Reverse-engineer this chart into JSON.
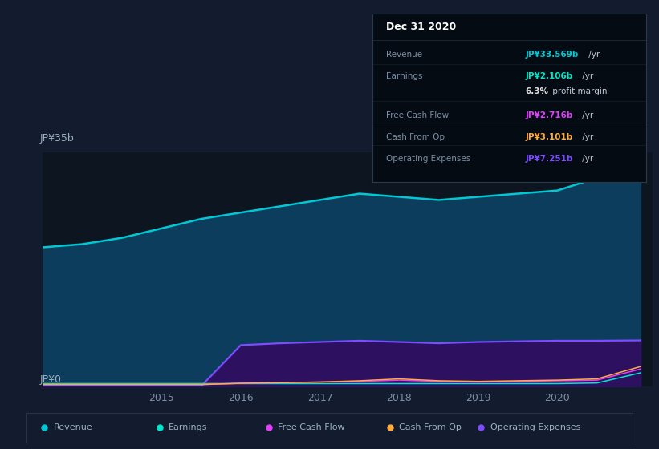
{
  "bg_color": "#131c2e",
  "plot_bg": "#0d1520",
  "title": "Dec 31 2020",
  "years": [
    2013.5,
    2014.0,
    2014.5,
    2015.0,
    2015.5,
    2016.0,
    2016.5,
    2017.0,
    2017.5,
    2018.0,
    2018.5,
    2019.0,
    2019.5,
    2020.0,
    2020.5,
    2021.05
  ],
  "revenue": [
    22.0,
    22.5,
    23.5,
    25.0,
    26.5,
    27.5,
    28.5,
    29.5,
    30.5,
    30.0,
    29.5,
    30.0,
    30.5,
    31.0,
    33.0,
    33.569
  ],
  "earnings": [
    0.4,
    0.4,
    0.4,
    0.4,
    0.4,
    0.4,
    0.4,
    0.4,
    0.4,
    0.4,
    0.4,
    0.4,
    0.4,
    0.4,
    0.5,
    2.106
  ],
  "free_cash_flow": [
    0.25,
    0.25,
    0.25,
    0.25,
    0.25,
    0.45,
    0.55,
    0.65,
    0.75,
    0.95,
    0.75,
    0.65,
    0.75,
    0.85,
    0.95,
    2.716
  ],
  "cash_from_op": [
    0.25,
    0.25,
    0.25,
    0.25,
    0.25,
    0.45,
    0.55,
    0.65,
    0.85,
    1.15,
    0.85,
    0.75,
    0.85,
    0.95,
    1.15,
    3.101
  ],
  "op_expenses": [
    0.0,
    0.0,
    0.0,
    0.0,
    0.0,
    6.5,
    6.8,
    7.0,
    7.2,
    7.0,
    6.8,
    7.0,
    7.1,
    7.2,
    7.2,
    7.251
  ],
  "revenue_color": "#00c8d4",
  "earnings_color": "#00e8cc",
  "fcf_color": "#e040fb",
  "cashop_color": "#ffab40",
  "opex_color": "#7c4dff",
  "revenue_fill": "#0d3d5c",
  "opex_fill": "#2d1060",
  "ylabel_top": "JP¥35b",
  "ylabel_bot": "JP¥0",
  "ylim": [
    0,
    37
  ],
  "xlim": [
    2013.5,
    2021.2
  ],
  "xticks": [
    2015,
    2016,
    2017,
    2018,
    2019,
    2020
  ],
  "legend_labels": [
    "Revenue",
    "Earnings",
    "Free Cash Flow",
    "Cash From Op",
    "Operating Expenses"
  ],
  "legend_colors": [
    "#00c8d4",
    "#00e8cc",
    "#e040fb",
    "#ffab40",
    "#7c4dff"
  ],
  "tooltip_rows": [
    {
      "label": "Revenue",
      "value": "JP¥33.569b",
      "suffix": " /yr",
      "vcolor": "#00c8d4"
    },
    {
      "label": "Earnings",
      "value": "JP¥2.106b",
      "suffix": " /yr",
      "vcolor": "#00e8cc"
    },
    {
      "label": "",
      "value": "6.3%",
      "suffix": " profit margin",
      "vcolor": "#e0e0e0"
    },
    {
      "label": "Free Cash Flow",
      "value": "JP¥2.716b",
      "suffix": " /yr",
      "vcolor": "#e040fb"
    },
    {
      "label": "Cash From Op",
      "value": "JP¥3.101b",
      "suffix": " /yr",
      "vcolor": "#ffab40"
    },
    {
      "label": "Operating Expenses",
      "value": "JP¥7.251b",
      "suffix": " /yr",
      "vcolor": "#7c4dff"
    }
  ]
}
